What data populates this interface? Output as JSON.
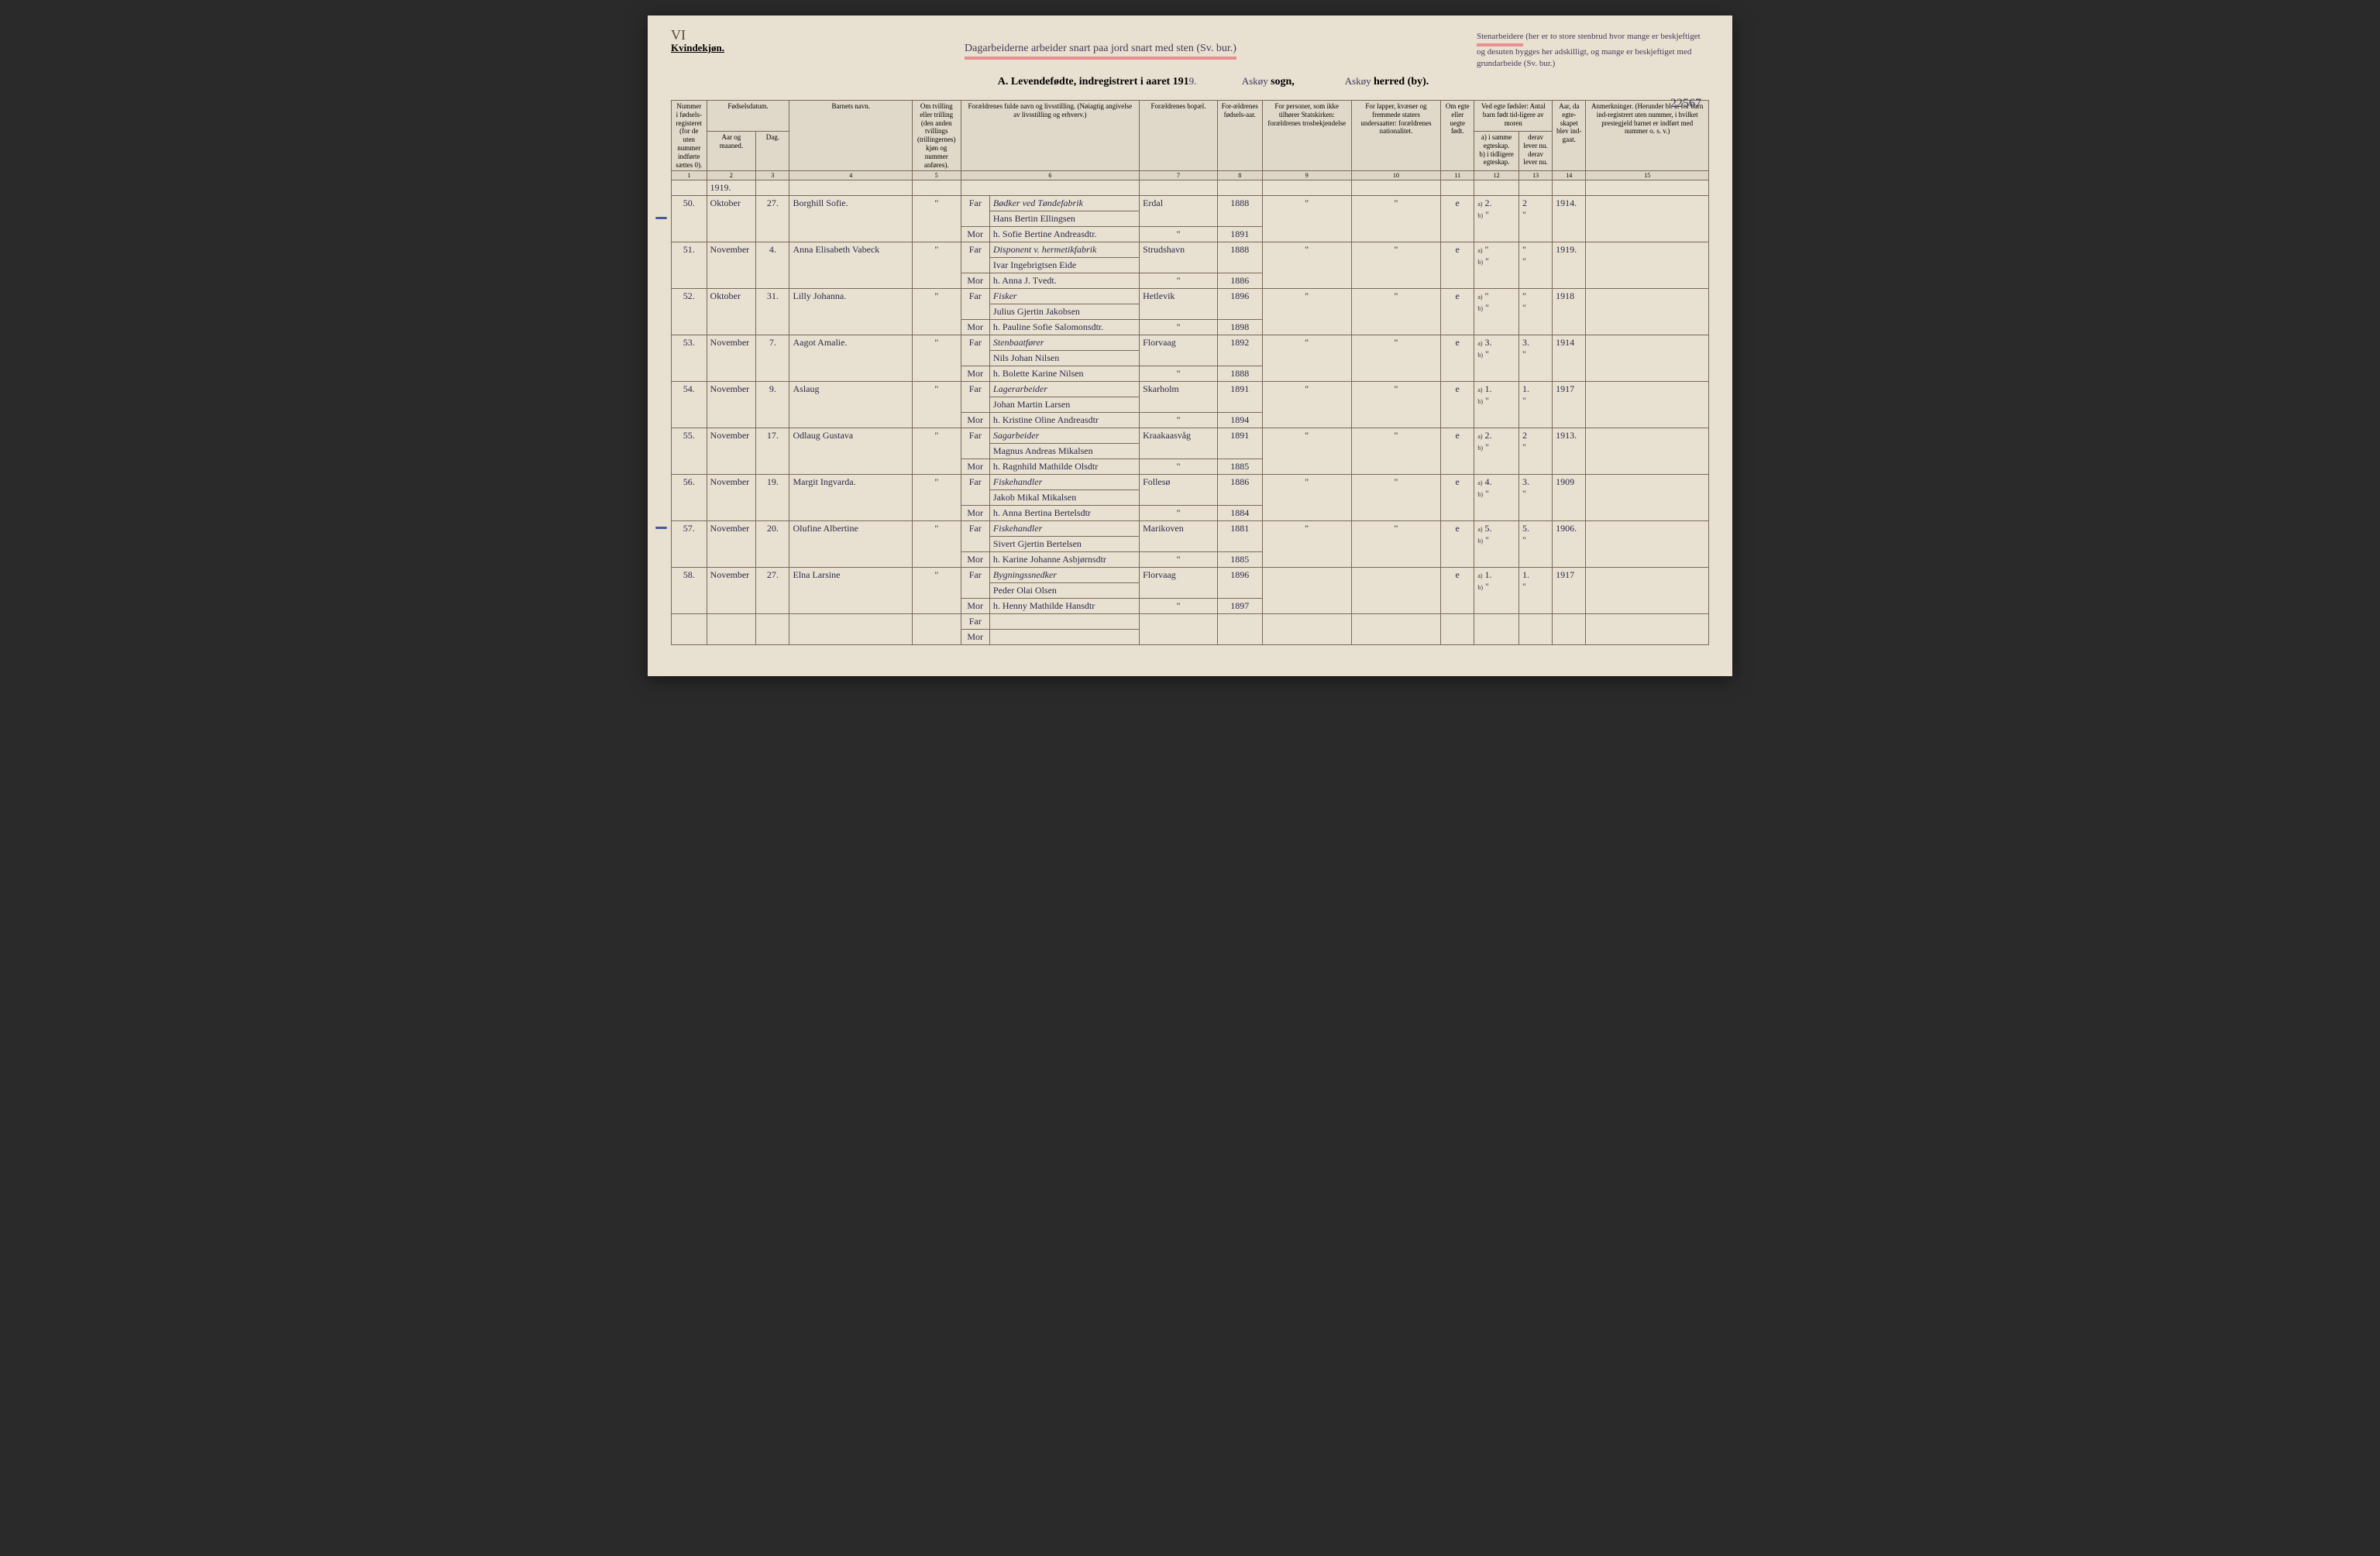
{
  "page_number_roman": "VI",
  "top_handwriting": "Dagarbeiderne arbeider snart paa jord snart med sten (Sv. bur.)",
  "right_handwriting": "Stenarbeidere (her er to store stenbrud hvor mange er beskjeftiget og desuten bygges her adskilligt, og mange er beskjeftiget med grundarbeide (Sv. bur.)",
  "side_number": "22567",
  "header": {
    "left": "Kvindekjøn.",
    "title_prefix": "A. Levendefødte, indregistrert i aaret 191",
    "title_year_digit": "9.",
    "sogn_word": "sogn,",
    "sogn_name": "Askøy",
    "herred_word": "herred (by).",
    "herred_name": "Askøy"
  },
  "columns": {
    "c1": "Nummer i fødsels-registeret (for de uten nummer indførte sættes 0).",
    "c2_top": "Fødselsdatum.",
    "c2": "Aar og maaned.",
    "c3": "Dag.",
    "c4": "Barnets navn.",
    "c5": "Om tvilling eller trilling (den anden tvillings (trillingernes) kjøn og nummer anføres).",
    "c6": "Forældrenes fulde navn og livsstilling. (Nøiagtig angivelse av livsstilling og erhverv.)",
    "c7": "Forældrenes bopæl.",
    "c8": "For-ældrenes fødsels-aar.",
    "c9": "For personer, som ikke tilhører Statskirken: forældrenes trosbekjendelse",
    "c10": "For lapper, kvæner og fremmede staters undersaatter: forældrenes nationalitet.",
    "c11": "Om egte eller uegte født.",
    "c12_top": "Ved egte fødsler: Antal barn født tid-ligere av moren",
    "c12a": "a) i samme egteskap.",
    "c12b": "b) i tidligere egteskap.",
    "c13a": "derav lever nu.",
    "c13b": "derav lever nu.",
    "c14": "Aar, da egte-skapet blev ind-gaat.",
    "c15": "Anmerkninger. (Herunder bl. a. for barn ind-registrert uten nummer, i hvilket prestegjeld barnet er indført med nummer o. s. v.)"
  },
  "col_numbers": [
    "1",
    "2",
    "3",
    "4",
    "5",
    "",
    "6",
    "7",
    "8",
    "9",
    "10",
    "11",
    "12",
    "13",
    "14",
    "15"
  ],
  "far_label": "Far",
  "mor_label": "Mor",
  "year_row": "1919.",
  "rows": [
    {
      "num": "50.",
      "month": "Oktober",
      "day": "27.",
      "child": "Borghill Sofie.",
      "twin": "\"",
      "far_occ": "Bødker ved Tøndefabrik",
      "far": "Hans Bertin Ellingsen",
      "mor": "h. Sofie Bertine Andreasdtr.",
      "bopael": "Erdal",
      "far_year": "1888",
      "mor_year": "1891",
      "c9": "\"",
      "c10": "\"",
      "egte": "e",
      "a": "2.",
      "a2": "2",
      "aar": "1914."
    },
    {
      "num": "51.",
      "month": "November",
      "day": "4.",
      "child": "Anna Elisabeth Vabeck",
      "twin": "\"",
      "far_occ": "Disponent v. hermetikfabrik",
      "far": "Ivar Ingebrigtsen Eide",
      "mor": "h. Anna J. Tvedt.",
      "bopael": "Strudshavn",
      "far_year": "1888",
      "mor_year": "1886",
      "c9": "\"",
      "c10": "\"",
      "egte": "e",
      "a": "\"",
      "a2": "\"",
      "aar": "1919."
    },
    {
      "num": "52.",
      "month": "Oktober",
      "day": "31.",
      "child": "Lilly Johanna.",
      "twin": "\"",
      "far_occ": "Fisker",
      "far": "Julius Gjertin Jakobsen",
      "mor": "h. Pauline Sofie Salomonsdtr.",
      "bopael": "Hetlevik",
      "far_year": "1896",
      "mor_year": "1898",
      "c9": "\"",
      "c10": "\"",
      "egte": "e",
      "a": "\"",
      "a2": "\"",
      "aar": "1918"
    },
    {
      "num": "53.",
      "month": "November",
      "day": "7.",
      "child": "Aagot Amalie.",
      "twin": "\"",
      "far_occ": "Stenbaatfører",
      "far": "Nils Johan Nilsen",
      "mor": "h. Bolette Karine Nilsen",
      "bopael": "Florvaag",
      "far_year": "1892",
      "mor_year": "1888",
      "c9": "\"",
      "c10": "\"",
      "egte": "e",
      "a": "3.",
      "a2": "3.",
      "aar": "1914"
    },
    {
      "num": "54.",
      "month": "November",
      "day": "9.",
      "child": "Aslaug",
      "twin": "\"",
      "far_occ": "Lagerarbeider",
      "far": "Johan Martin Larsen",
      "mor": "h. Kristine Oline Andreasdtr",
      "bopael": "Skarholm",
      "far_year": "1891",
      "mor_year": "1894",
      "c9": "\"",
      "c10": "\"",
      "egte": "e",
      "a": "1.",
      "a2": "1.",
      "aar": "1917"
    },
    {
      "num": "55.",
      "month": "November",
      "day": "17.",
      "child": "Odlaug Gustava",
      "twin": "\"",
      "far_occ": "Sagarbeider",
      "far": "Magnus Andreas Mikalsen",
      "mor": "h. Ragnhild Mathilde Olsdtr",
      "bopael": "Kraakaasvåg",
      "far_year": "1891",
      "mor_year": "1885",
      "c9": "\"",
      "c10": "\"",
      "egte": "e",
      "a": "2.",
      "a2": "2",
      "aar": "1913."
    },
    {
      "num": "56.",
      "month": "November",
      "day": "19.",
      "child": "Margit Ingvarda.",
      "twin": "\"",
      "far_occ": "Fiskehandler",
      "far": "Jakob Mikal Mikalsen",
      "mor": "h. Anna Bertina Bertelsdtr",
      "bopael": "Follesø",
      "far_year": "1886",
      "mor_year": "1884",
      "c9": "\"",
      "c10": "\"",
      "egte": "e",
      "a": "4.",
      "a2": "3.",
      "aar": "1909"
    },
    {
      "num": "57.",
      "month": "November",
      "day": "20.",
      "child": "Olufine Albertine",
      "twin": "\"",
      "far_occ": "Fiskehandler",
      "far": "Sivert Gjertin Bertelsen",
      "mor": "h. Karine Johanne Asbjørnsdtr",
      "bopael": "Marikoven",
      "far_year": "1881",
      "mor_year": "1885",
      "c9": "\"",
      "c10": "\"",
      "egte": "e",
      "a": "5.",
      "a2": "5.",
      "aar": "1906."
    },
    {
      "num": "58.",
      "month": "November",
      "day": "27.",
      "child": "Elna Larsine",
      "twin": "\"",
      "far_occ": "Bygningssnedker",
      "far": "Peder Olai Olsen",
      "mor": "h. Henny Mathilde Hansdtr",
      "bopael": "Florvaag",
      "far_year": "1896",
      "mor_year": "1897",
      "c9": "",
      "c10": "",
      "egte": "e",
      "a": "1.",
      "a2": "1.",
      "aar": "1917"
    }
  ]
}
